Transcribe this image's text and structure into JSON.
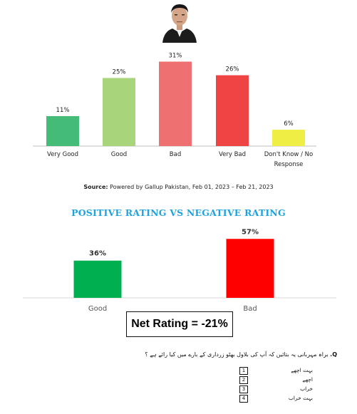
{
  "chart_data": [
    {
      "type": "bar",
      "categories": [
        "Very Good",
        "Good",
        "Bad",
        "Very Bad",
        "Don't Know / No Response"
      ],
      "values": [
        11,
        25,
        31,
        26,
        6
      ],
      "value_labels": [
        "11%",
        "25%",
        "31%",
        "26%",
        "6%"
      ],
      "colors": [
        "#44bb77",
        "#a8d47c",
        "#ee7070",
        "#ee4444",
        "#eeee44"
      ],
      "title": "",
      "xlabel": "",
      "ylabel": "",
      "ylim": [
        0,
        34
      ],
      "grid": false
    },
    {
      "type": "bar",
      "title": "POSITIVE RATING VS NEGATIVE RATING",
      "categories": [
        "Good",
        "Bad"
      ],
      "values": [
        36,
        57
      ],
      "value_labels": [
        "36%",
        "57%"
      ],
      "colors": [
        "#00b050",
        "#ff0000"
      ],
      "xlabel": "",
      "ylabel": "",
      "ylim": [
        0,
        62
      ],
      "grid": false
    }
  ],
  "source": {
    "label": "Source:",
    "text": "Powered by Gallup Pakistan, Feb 01, 2023 – Feb 21, 2023"
  },
  "net_rating": "Net Rating = -21%",
  "question": {
    "prefix": "Q.",
    "text": "براہ مہربانی یہ بتائیں کہ آپ کی بلاول بھٹو زرداری کے بارے میں کیا رائے ہے ؟",
    "options": [
      {
        "num": "1",
        "label": "بہت اچھے"
      },
      {
        "num": "2",
        "label": "اچھے"
      },
      {
        "num": "3",
        "label": "خراب"
      },
      {
        "num": "4",
        "label": "بہت خراب"
      }
    ]
  },
  "colors": {
    "title_blue": "#1fa3e0",
    "axis": "#bfbfbf"
  }
}
